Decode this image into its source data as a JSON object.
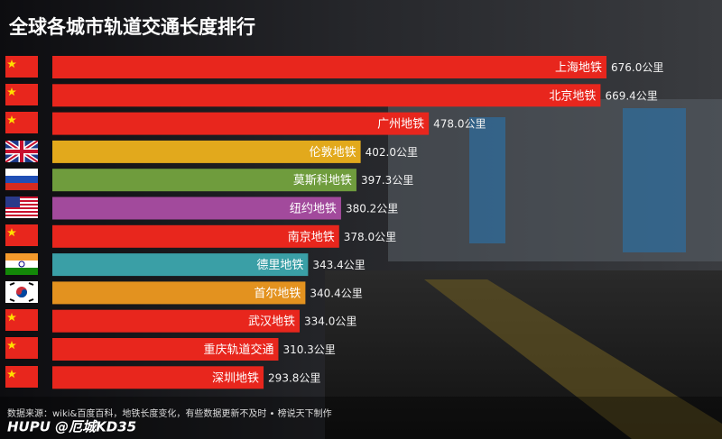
{
  "chart_data": {
    "type": "bar",
    "orientation": "horizontal",
    "title": "全球各城市轨道交通长度排行",
    "categories": [
      "上海地铁",
      "北京地铁",
      "广州地铁",
      "伦敦地铁",
      "莫斯科地铁",
      "纽约地铁",
      "南京地铁",
      "德里地铁",
      "首尔地铁",
      "武汉地铁",
      "重庆轨道交通",
      "深圳地铁"
    ],
    "values": [
      676.0,
      669.4,
      478.0,
      402.0,
      397.3,
      380.2,
      378.0,
      343.4,
      340.4,
      334.0,
      310.3,
      293.8
    ],
    "value_labels": [
      "676.0公里",
      "669.4公里",
      "478.0公里",
      "402.0公里",
      "397.3公里",
      "380.2公里",
      "378.0公里",
      "343.4公里",
      "340.4公里",
      "334.0公里",
      "310.3公里",
      "293.8公里"
    ],
    "colors": [
      "#e8261d",
      "#e8261d",
      "#e8261d",
      "#e2a91c",
      "#6f9c3d",
      "#a24a9c",
      "#e8261d",
      "#3a9fa6",
      "#e3921f",
      "#e8261d",
      "#e8261d",
      "#e8261d"
    ],
    "source": "数据来源：wiki&百度百科，地铁长度变化，有些数据更新不及时 • 榜说天下制作",
    "watermark": "HUPU @厄城KD35"
  }
}
